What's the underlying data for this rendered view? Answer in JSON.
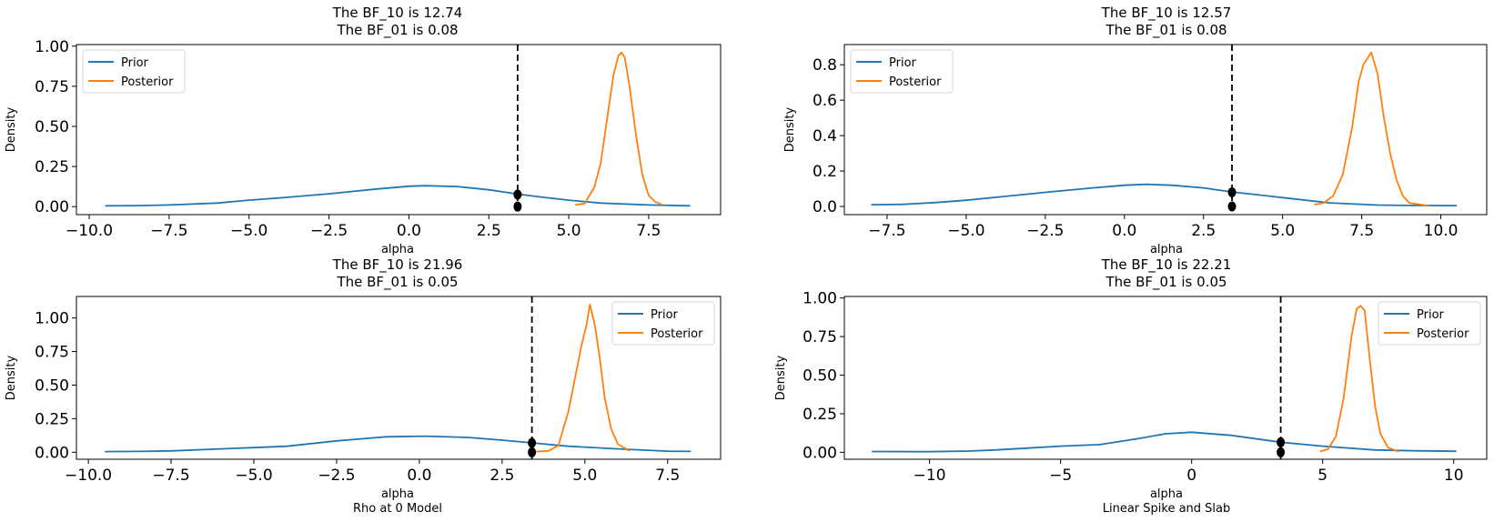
{
  "colors": {
    "prior": "#1f77b4",
    "posterior": "#ff7f0e",
    "reference_line": "#000000"
  },
  "chart_data": [
    {
      "type": "line",
      "title_lines": [
        "The BF_10 is 12.74",
        "The BF_01 is 0.08"
      ],
      "xlabel": "alpha",
      "ylabel": "Density",
      "subtitle": "",
      "xlim": [
        -10.4,
        9.75
      ],
      "ylim": [
        -0.05,
        1.01
      ],
      "xticks": [
        -10,
        -7.5,
        -5,
        -2.5,
        0,
        2.5,
        5,
        7.5
      ],
      "xtick_labels": [
        "−10.0",
        "−7.5",
        "−5.0",
        "−2.5",
        "0.0",
        "2.5",
        "5.0",
        "7.5"
      ],
      "yticks": [
        0,
        0.25,
        0.5,
        0.75,
        1.0
      ],
      "ytick_labels": [
        "0.00",
        "0.25",
        "0.50",
        "0.75",
        "1.00"
      ],
      "legend": {
        "placement": "upper-left",
        "entries": [
          "Prior",
          "Posterior"
        ]
      },
      "reference_x": 3.4,
      "points": [
        [
          3.4,
          0.075
        ],
        [
          3.4,
          0.0
        ]
      ],
      "series": [
        {
          "name": "Prior",
          "x": [
            -9.5,
            -8.5,
            -7.5,
            -6,
            -5,
            -4,
            -2.5,
            -1,
            0,
            0.5,
            1.5,
            2.5,
            3.4,
            4,
            5,
            6,
            7.5,
            8.8
          ],
          "y": [
            0.005,
            0.006,
            0.01,
            0.022,
            0.04,
            0.055,
            0.08,
            0.11,
            0.127,
            0.13,
            0.125,
            0.105,
            0.078,
            0.063,
            0.04,
            0.022,
            0.01,
            0.005
          ]
        },
        {
          "name": "Posterior",
          "x": [
            5.2,
            5.5,
            5.8,
            6.0,
            6.2,
            6.4,
            6.55,
            6.65,
            6.75,
            6.9,
            7.1,
            7.3,
            7.5,
            7.7,
            7.95
          ],
          "y": [
            0.01,
            0.02,
            0.12,
            0.27,
            0.55,
            0.82,
            0.94,
            0.96,
            0.93,
            0.75,
            0.45,
            0.2,
            0.07,
            0.03,
            0.01
          ]
        }
      ]
    },
    {
      "type": "line",
      "title_lines": [
        "The BF_10 is 12.57",
        "The BF_01 is 0.08"
      ],
      "xlabel": "alpha",
      "ylabel": "Density",
      "subtitle": "",
      "xlim": [
        -8.85,
        11.45
      ],
      "ylim": [
        -0.046,
        0.914
      ],
      "xticks": [
        -7.5,
        -5,
        -2.5,
        0,
        2.5,
        5,
        7.5,
        10
      ],
      "xtick_labels": [
        "−7.5",
        "−5.0",
        "−2.5",
        "0.0",
        "2.5",
        "5.0",
        "7.5",
        "10.0"
      ],
      "yticks": [
        0,
        0.2,
        0.4,
        0.6,
        0.8
      ],
      "ytick_labels": [
        "0.0",
        "0.2",
        "0.4",
        "0.6",
        "0.8"
      ],
      "legend": {
        "placement": "upper-left",
        "entries": [
          "Prior",
          "Posterior"
        ]
      },
      "reference_x": 3.4,
      "points": [
        [
          3.4,
          0.08
        ],
        [
          3.4,
          0.0
        ]
      ],
      "series": [
        {
          "name": "Prior",
          "x": [
            -8,
            -7,
            -6,
            -5,
            -3.5,
            -2.5,
            -1,
            0,
            0.7,
            1.5,
            2.5,
            3.4,
            4,
            5,
            6.5,
            8,
            9,
            10.5
          ],
          "y": [
            0.01,
            0.012,
            0.022,
            0.035,
            0.062,
            0.08,
            0.105,
            0.12,
            0.125,
            0.12,
            0.105,
            0.082,
            0.07,
            0.05,
            0.02,
            0.008,
            0.006,
            0.005
          ]
        },
        {
          "name": "Posterior",
          "x": [
            6.0,
            6.3,
            6.6,
            6.9,
            7.2,
            7.4,
            7.55,
            7.8,
            8.0,
            8.2,
            8.4,
            8.6,
            8.8,
            9.0,
            9.6
          ],
          "y": [
            0.01,
            0.02,
            0.06,
            0.18,
            0.45,
            0.7,
            0.8,
            0.87,
            0.75,
            0.5,
            0.3,
            0.15,
            0.06,
            0.02,
            0.005
          ]
        }
      ]
    },
    {
      "type": "line",
      "title_lines": [
        "The BF_10 is 21.96",
        "The BF_01 is 0.05"
      ],
      "xlabel": "alpha",
      "ylabel": "Density",
      "subtitle": "Rho at 0 Model",
      "xlim": [
        -10.36,
        9.1
      ],
      "ylim": [
        -0.052,
        1.16
      ],
      "xticks": [
        -10,
        -7.5,
        -5,
        -2.5,
        0,
        2.5,
        5,
        7.5
      ],
      "xtick_labels": [
        "−10.0",
        "−7.5",
        "−5.0",
        "−2.5",
        "0.0",
        "2.5",
        "5.0",
        "7.5"
      ],
      "yticks": [
        0,
        0.25,
        0.5,
        0.75,
        1.0
      ],
      "ytick_labels": [
        "0.00",
        "0.25",
        "0.50",
        "0.75",
        "1.00"
      ],
      "legend": {
        "placement": "upper-right",
        "entries": [
          "Prior",
          "Posterior"
        ]
      },
      "reference_x": 3.4,
      "points": [
        [
          3.4,
          0.07
        ],
        [
          3.4,
          0.0
        ]
      ],
      "series": [
        {
          "name": "Prior",
          "x": [
            -9.5,
            -8.5,
            -7.5,
            -6,
            -5,
            -4,
            -2.5,
            -1,
            0.2,
            1.5,
            2.5,
            3.4,
            4.5,
            6,
            7.5,
            8.2
          ],
          "y": [
            0.005,
            0.006,
            0.01,
            0.025,
            0.035,
            0.045,
            0.085,
            0.115,
            0.12,
            0.11,
            0.09,
            0.07,
            0.045,
            0.025,
            0.008,
            0.006
          ]
        },
        {
          "name": "Posterior",
          "x": [
            3.5,
            3.9,
            4.2,
            4.5,
            4.7,
            4.9,
            5.05,
            5.15,
            5.3,
            5.45,
            5.6,
            5.8,
            6.0,
            6.35
          ],
          "y": [
            0.005,
            0.01,
            0.05,
            0.3,
            0.55,
            0.8,
            0.95,
            1.1,
            0.95,
            0.7,
            0.4,
            0.17,
            0.06,
            0.01
          ]
        }
      ]
    },
    {
      "type": "line",
      "title_lines": [
        "The BF_10 is 22.21",
        "The BF_01 is 0.05"
      ],
      "xlabel": "alpha",
      "ylabel": "Density",
      "subtitle": "Linear Spike and Slab",
      "xlim": [
        -13.25,
        11.26
      ],
      "ylim": [
        -0.045,
        1.01
      ],
      "xticks": [
        -10,
        -5,
        0,
        5,
        10
      ],
      "xtick_labels": [
        "−10",
        "−5",
        "0",
        "5",
        "10"
      ],
      "yticks": [
        0,
        0.25,
        0.5,
        0.75,
        1.0
      ],
      "ytick_labels": [
        "0.00",
        "0.25",
        "0.50",
        "0.75",
        "1.00"
      ],
      "legend": {
        "placement": "upper-right",
        "entries": [
          "Prior",
          "Posterior"
        ]
      },
      "reference_x": 3.4,
      "points": [
        [
          3.4,
          0.065
        ],
        [
          3.4,
          0.0
        ]
      ],
      "series": [
        {
          "name": "Prior",
          "x": [
            -12.2,
            -10,
            -8.5,
            -7.5,
            -6,
            -5,
            -3.5,
            -2,
            -1,
            0,
            1.5,
            3.4,
            5,
            7,
            8.5,
            10.1
          ],
          "y": [
            0.005,
            0.004,
            0.008,
            0.015,
            0.03,
            0.04,
            0.05,
            0.09,
            0.12,
            0.13,
            0.11,
            0.065,
            0.04,
            0.015,
            0.01,
            0.007
          ]
        },
        {
          "name": "Posterior",
          "x": [
            4.9,
            5.2,
            5.5,
            5.8,
            6.1,
            6.3,
            6.45,
            6.6,
            6.8,
            7.0,
            7.2,
            7.5,
            7.9
          ],
          "y": [
            0.005,
            0.02,
            0.1,
            0.35,
            0.75,
            0.93,
            0.95,
            0.92,
            0.6,
            0.3,
            0.12,
            0.03,
            0.005
          ]
        }
      ]
    }
  ]
}
